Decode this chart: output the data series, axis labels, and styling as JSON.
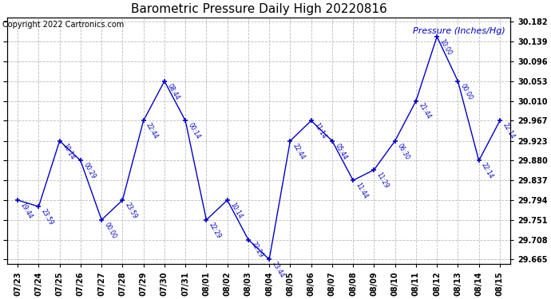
{
  "title": "Barometric Pressure Daily High 20220816",
  "ylabel_text": "Pressure (Inches/Hg)",
  "copyright": "Copyright 2022 Cartronics.com",
  "line_color": "#0000cc",
  "bg_color": "#ffffff",
  "grid_color": "#bbbbbb",
  "ylim": [
    29.655,
    30.192
  ],
  "ytick_vals": [
    29.665,
    29.708,
    29.751,
    29.794,
    29.837,
    29.88,
    29.923,
    29.967,
    30.01,
    30.053,
    30.096,
    30.139,
    30.182
  ],
  "x_labels": [
    "07/23",
    "07/24",
    "07/25",
    "07/26",
    "07/27",
    "07/28",
    "07/29",
    "07/30",
    "07/31",
    "08/01",
    "08/02",
    "08/03",
    "08/04",
    "08/05",
    "08/06",
    "08/07",
    "08/08",
    "08/09",
    "08/10",
    "08/11",
    "08/12",
    "08/13",
    "08/14",
    "08/15"
  ],
  "y_values": [
    29.794,
    29.78,
    29.923,
    29.88,
    29.751,
    29.794,
    29.967,
    30.053,
    29.967,
    29.751,
    29.794,
    29.708,
    29.665,
    29.923,
    29.967,
    29.923,
    29.837,
    29.86,
    29.923,
    30.01,
    30.15,
    30.053,
    29.88,
    29.967
  ],
  "time_labels": [
    "19:44",
    "23:59",
    "10:14",
    "00:29",
    "00:00",
    "23:59",
    "22:44",
    "08:44",
    "00:14",
    "22:29",
    "10:14",
    "22:29",
    "23:44",
    "22:44",
    "11:14",
    "05:44",
    "11:44",
    "11:29",
    "06:30",
    "21:44",
    "10:00",
    "00:00",
    "22:14",
    "22:14"
  ]
}
